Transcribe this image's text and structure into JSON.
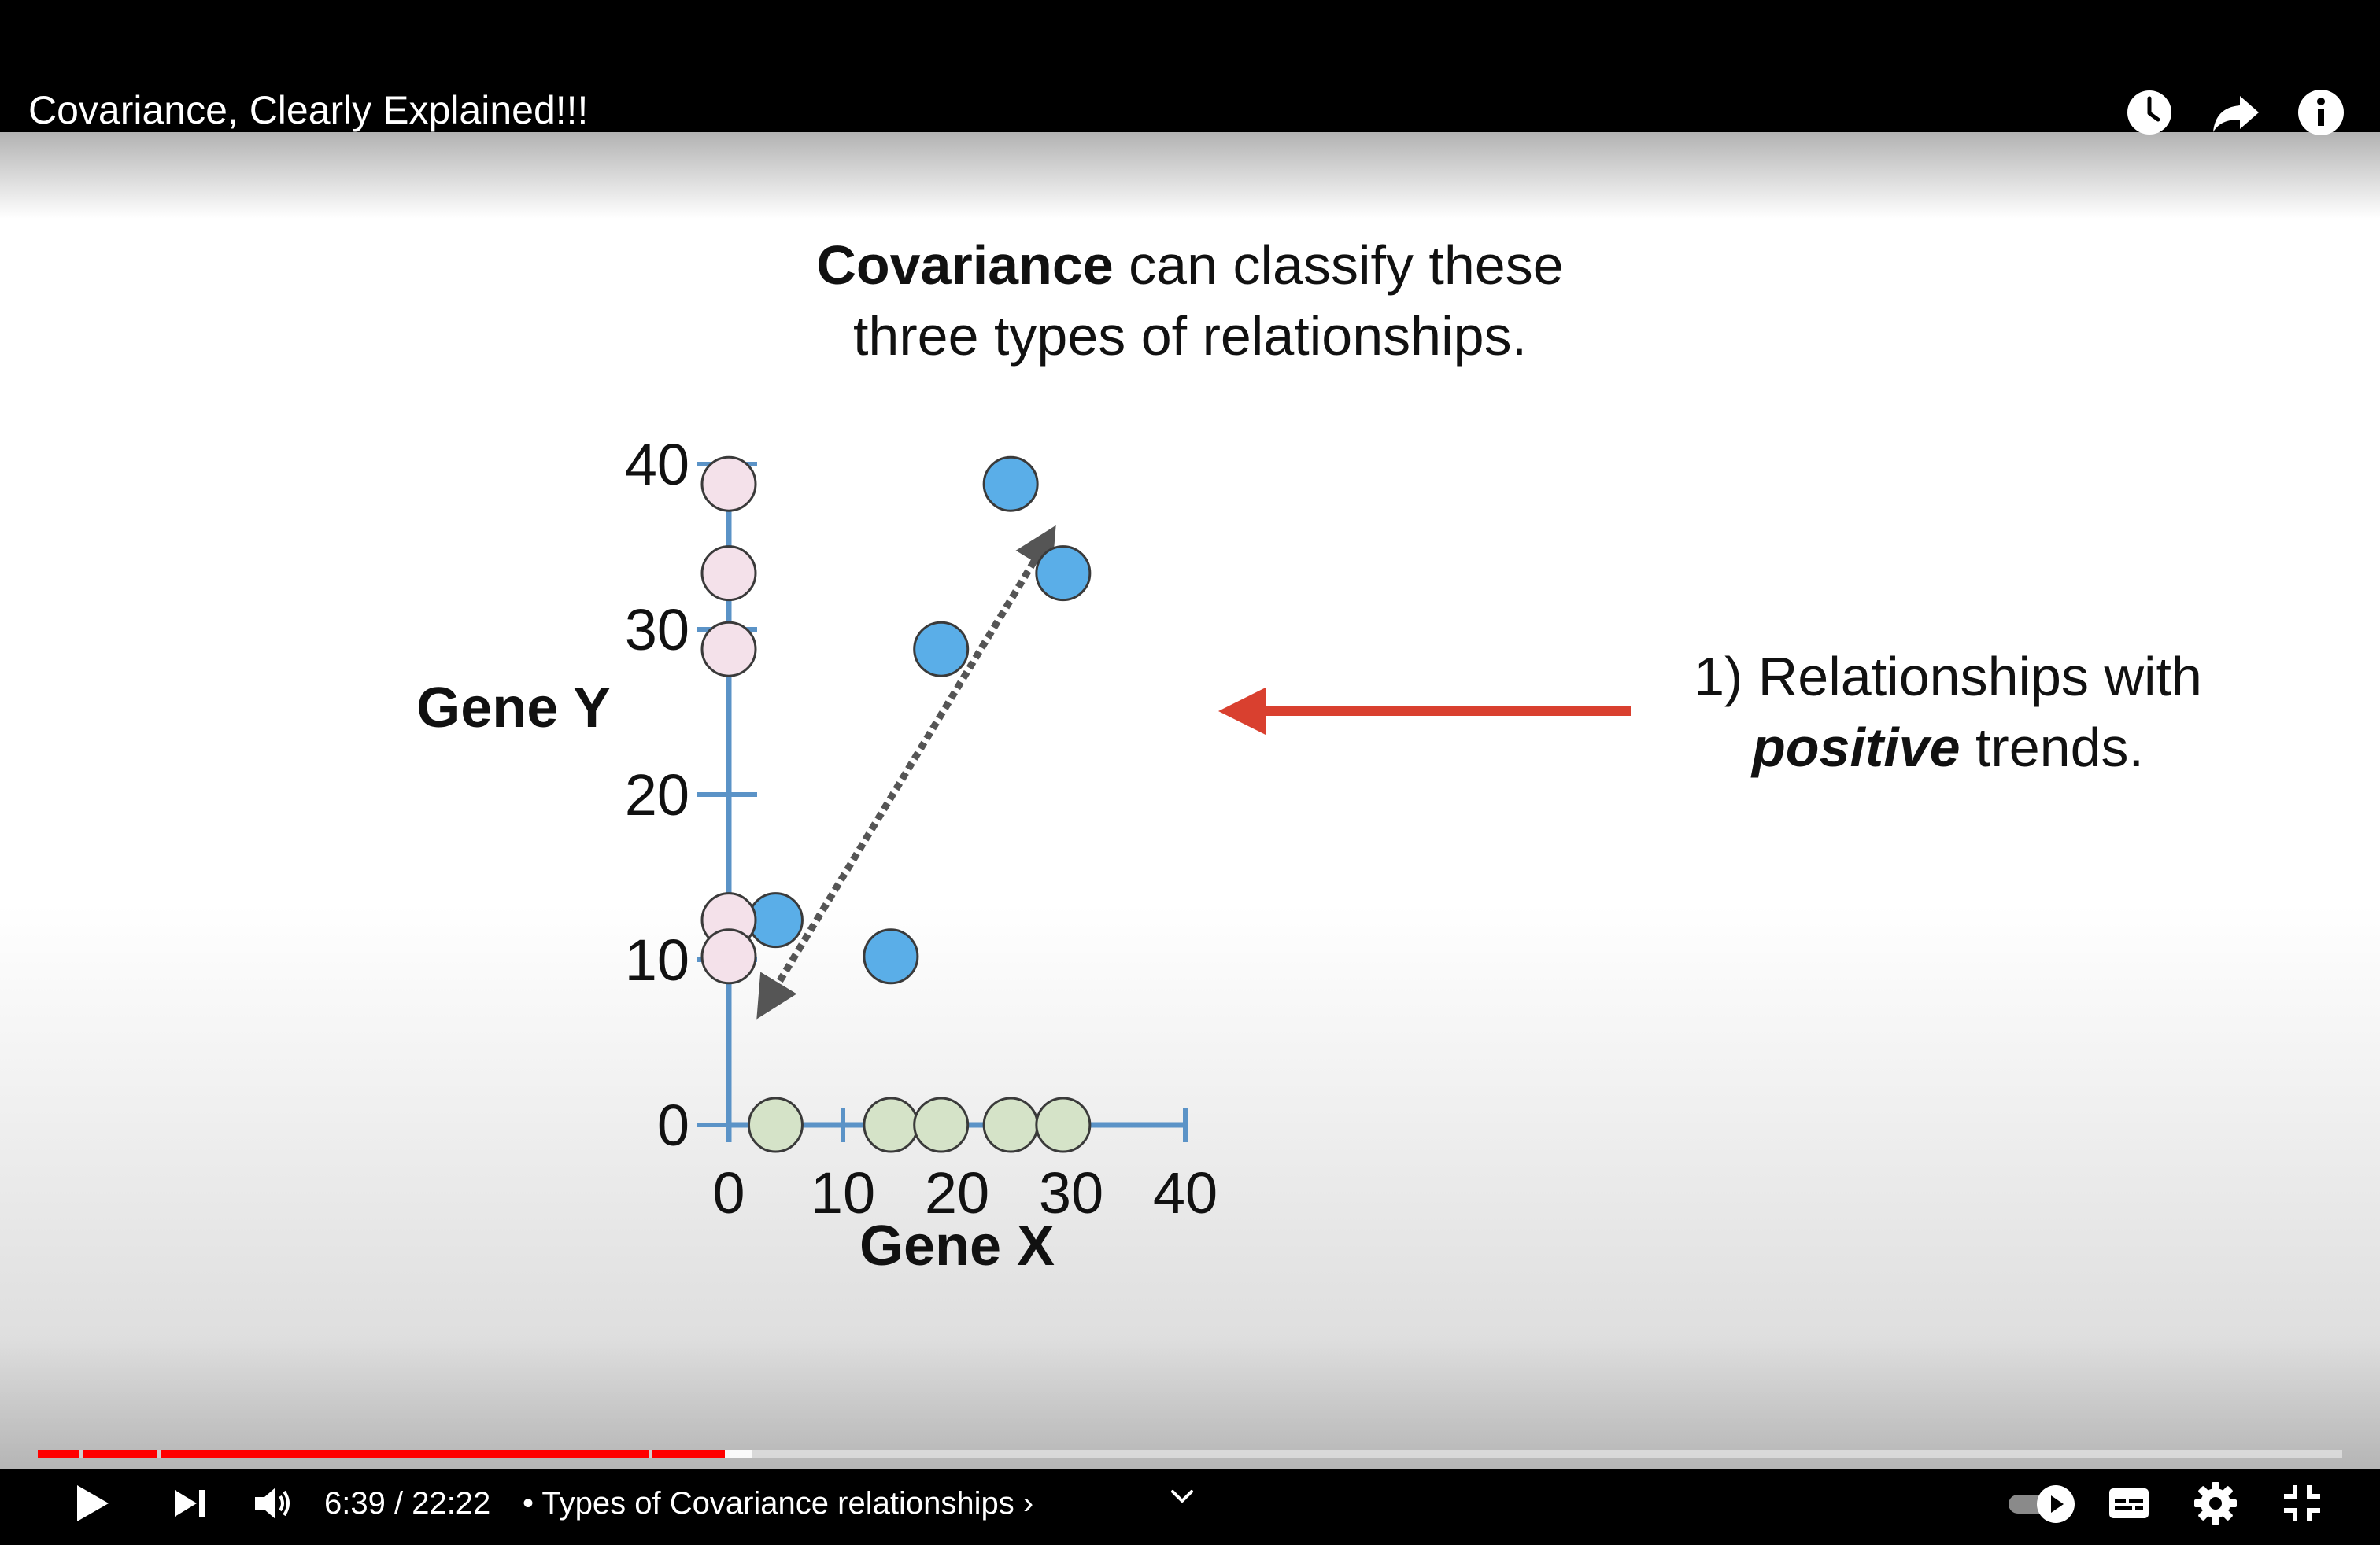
{
  "window": {
    "title": "Covariance, Clearly Explained!!!"
  },
  "top_icons": [
    "clock-icon",
    "share-icon",
    "info-icon"
  ],
  "slide": {
    "title_bold": "Covariance",
    "title_line1_rest": " can classify these",
    "title_line2": "three types of relationships.",
    "annotation_line1": "1) Relationships with",
    "annotation_emphasis": "positive",
    "annotation_line2_rest": " trends.",
    "annotation_arrow_color": "#d9402f"
  },
  "chart_data": {
    "type": "scatter",
    "xlabel": "Gene X",
    "ylabel": "Gene Y",
    "xlim": [
      0,
      40
    ],
    "ylim": [
      0,
      40
    ],
    "x_ticks": [
      "0",
      "10",
      "20",
      "30",
      "40"
    ],
    "y_ticks": [
      "0",
      "10",
      "20",
      "30",
      "40"
    ],
    "axis_color": "#5b93c7",
    "series": [
      {
        "color": "#5aaee8",
        "points": [
          [
            4.1,
            12.4
          ],
          [
            14.2,
            10.2
          ],
          [
            18.6,
            28.8
          ],
          [
            24.7,
            38.8
          ],
          [
            29.3,
            33.4
          ]
        ]
      },
      {
        "color": "#f4e1ea",
        "points": [
          [
            0,
            38.8
          ],
          [
            0,
            33.4
          ],
          [
            0,
            28.8
          ],
          [
            0,
            12.4
          ],
          [
            0,
            10.2
          ]
        ]
      },
      {
        "color": "#d5e3c8",
        "points": [
          [
            4.1,
            0
          ],
          [
            14.2,
            0
          ],
          [
            18.6,
            0
          ],
          [
            24.7,
            0
          ],
          [
            29.3,
            0
          ]
        ]
      }
    ],
    "trend_arrow": {
      "from": [
        3.4,
        7.5
      ],
      "to": [
        27.7,
        35.2
      ],
      "style": "dotted, double-headed",
      "color": "#555555"
    }
  },
  "player": {
    "time_current": "6:39",
    "time_total": "22:22",
    "time_display": "6:39 / 22:22",
    "chapter": "• Types of Covariance relationships ›",
    "progress_fraction": 0.298,
    "buffered_fraction": 0.31,
    "progress_color": "#ff0000"
  },
  "control_icons": [
    "play-icon",
    "next-icon",
    "volume-icon",
    "chevron-down-icon",
    "autoplay-toggle",
    "subtitles-icon",
    "settings-icon",
    "exit-fullscreen-icon"
  ]
}
